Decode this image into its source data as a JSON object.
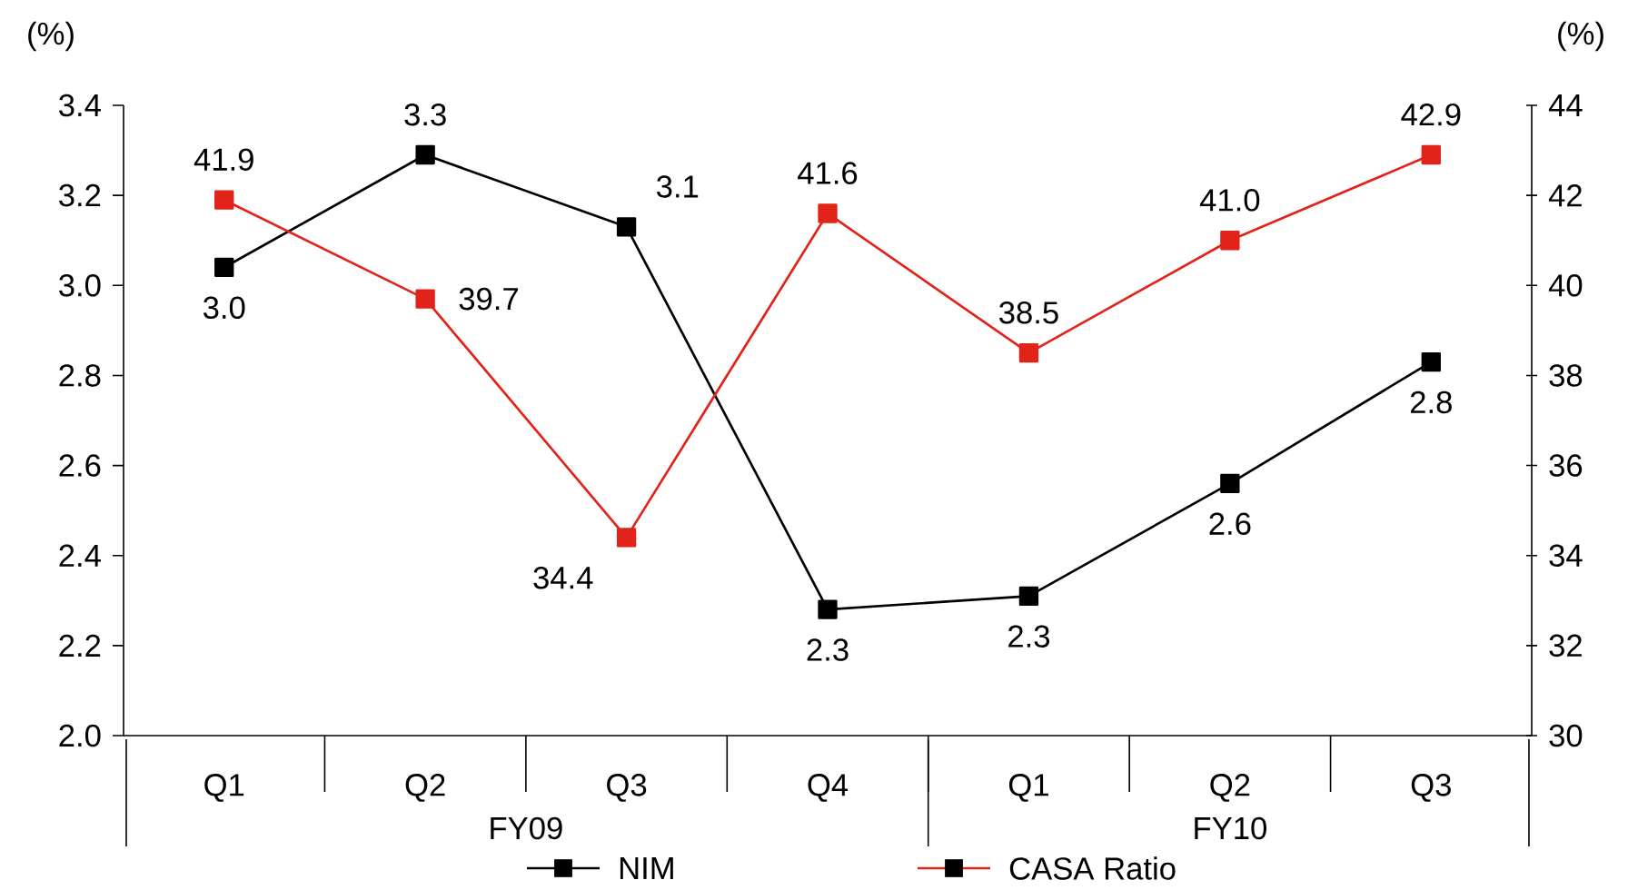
{
  "chart_data": {
    "type": "line",
    "categories": [
      "Q1",
      "Q2",
      "Q3",
      "Q4",
      "Q1",
      "Q2",
      "Q3"
    ],
    "ylabel": "(%)",
    "y2label": "(%)",
    "ylim": [
      2.0,
      3.4
    ],
    "yticks": [
      {
        "value": 2.0,
        "label": "2.0"
      },
      {
        "value": 2.2,
        "label": "2.2"
      },
      {
        "value": 2.4,
        "label": "2.4"
      },
      {
        "value": 2.6,
        "label": "2.6"
      },
      {
        "value": 2.8,
        "label": "2.8"
      },
      {
        "value": 3.0,
        "label": "3.0"
      },
      {
        "value": 3.2,
        "label": "3.2"
      },
      {
        "value": 3.4,
        "label": "3.4"
      }
    ],
    "y2lim": [
      30,
      44
    ],
    "y2ticks": [
      30,
      32,
      34,
      36,
      38,
      40,
      42,
      44
    ],
    "annotations": [
      "FY09",
      "FY10"
    ],
    "series": [
      {
        "name": "NIM",
        "color": "#000000",
        "values": [
          3.04,
          3.29,
          3.13,
          2.28,
          2.31,
          2.56,
          2.83
        ],
        "value_labels": [
          "3.0",
          "3.3",
          "3.1",
          "2.3",
          "2.3",
          "2.6",
          "2.8"
        ]
      },
      {
        "name": "CASA Ratio",
        "color": "#e2231a",
        "axis": "y2",
        "values": [
          41.9,
          39.7,
          34.4,
          41.6,
          38.5,
          41.0,
          42.9
        ],
        "value_labels": [
          "41.9",
          "39.7",
          "34.4",
          "41.6",
          "38.5",
          "41.0",
          "42.9"
        ]
      }
    ],
    "marker": "square",
    "line_style": "solid",
    "legend": "bottom",
    "grid": false
  }
}
